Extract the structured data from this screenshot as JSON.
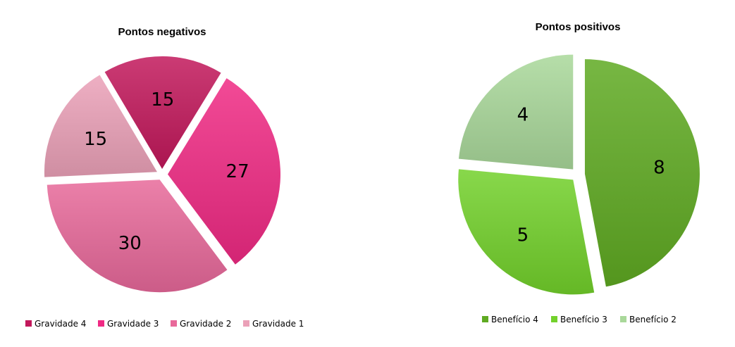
{
  "chart_data": [
    {
      "type": "pie",
      "title": "Pontos negativos",
      "legend_position": "bottom",
      "slices": [
        {
          "name": "Gravidade 4",
          "value": 15,
          "color": "#c2185b"
        },
        {
          "name": "Gravidade 3",
          "value": 27,
          "color": "#f02a84"
        },
        {
          "name": "Gravidade 2",
          "value": 30,
          "color": "#e8699a"
        },
        {
          "name": "Gravidade 1",
          "value": 15,
          "color": "#eba1b8"
        }
      ]
    },
    {
      "type": "pie",
      "title": "Pontos positivos",
      "legend_position": "bottom",
      "slices": [
        {
          "name": "Benefício 4",
          "value": 8,
          "color": "#5faa22"
        },
        {
          "name": "Benefício 3",
          "value": 5,
          "color": "#73d12b"
        },
        {
          "name": "Benefício 2",
          "value": 4,
          "color": "#a9d89a"
        }
      ]
    }
  ]
}
